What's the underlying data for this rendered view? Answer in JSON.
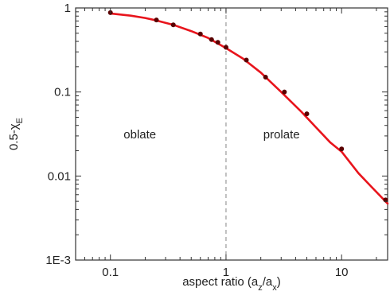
{
  "chart_data": {
    "type": "line",
    "title": "",
    "xlabel": "aspect ratio (a_z/a_x)",
    "ylabel": "0.5-χ_E",
    "xscale": "log",
    "yscale": "log",
    "xlim": [
      0.05,
      25
    ],
    "ylim": [
      0.001,
      1
    ],
    "xticks": [
      0.1,
      1,
      10
    ],
    "xtick_labels": [
      "0.1",
      "1",
      "10"
    ],
    "yticks": [
      0.001,
      0.01,
      0.1,
      1
    ],
    "ytick_labels": [
      "1E-3",
      "0.01",
      "0.1",
      "1"
    ],
    "grid": false,
    "colors": {
      "curve": "#e8141c",
      "points": "#5a0000",
      "reference_line": "#9a9a9a"
    },
    "reference_line_x": 1,
    "annotations": [
      "oblate",
      "prolate"
    ],
    "series": [
      {
        "kind": "curve",
        "x": [
          0.1,
          0.15,
          0.2,
          0.25,
          0.35,
          0.5,
          0.7,
          1.0,
          1.4,
          2.0,
          3.0,
          4.5,
          6.0,
          8.0,
          10.0,
          14.0,
          18.0,
          25.0
        ],
        "y": [
          0.86,
          0.81,
          0.76,
          0.71,
          0.63,
          0.53,
          0.44,
          0.333,
          0.25,
          0.17,
          0.1,
          0.058,
          0.038,
          0.025,
          0.0195,
          0.0108,
          0.0075,
          0.0047
        ]
      },
      {
        "kind": "points",
        "x": [
          0.1,
          0.25,
          0.35,
          0.6,
          0.75,
          0.85,
          1.0,
          1.5,
          2.2,
          3.2,
          5.0,
          10.0,
          24.0
        ],
        "y": [
          0.88,
          0.72,
          0.63,
          0.49,
          0.42,
          0.39,
          0.34,
          0.24,
          0.15,
          0.1,
          0.055,
          0.021,
          0.0052
        ]
      }
    ]
  }
}
